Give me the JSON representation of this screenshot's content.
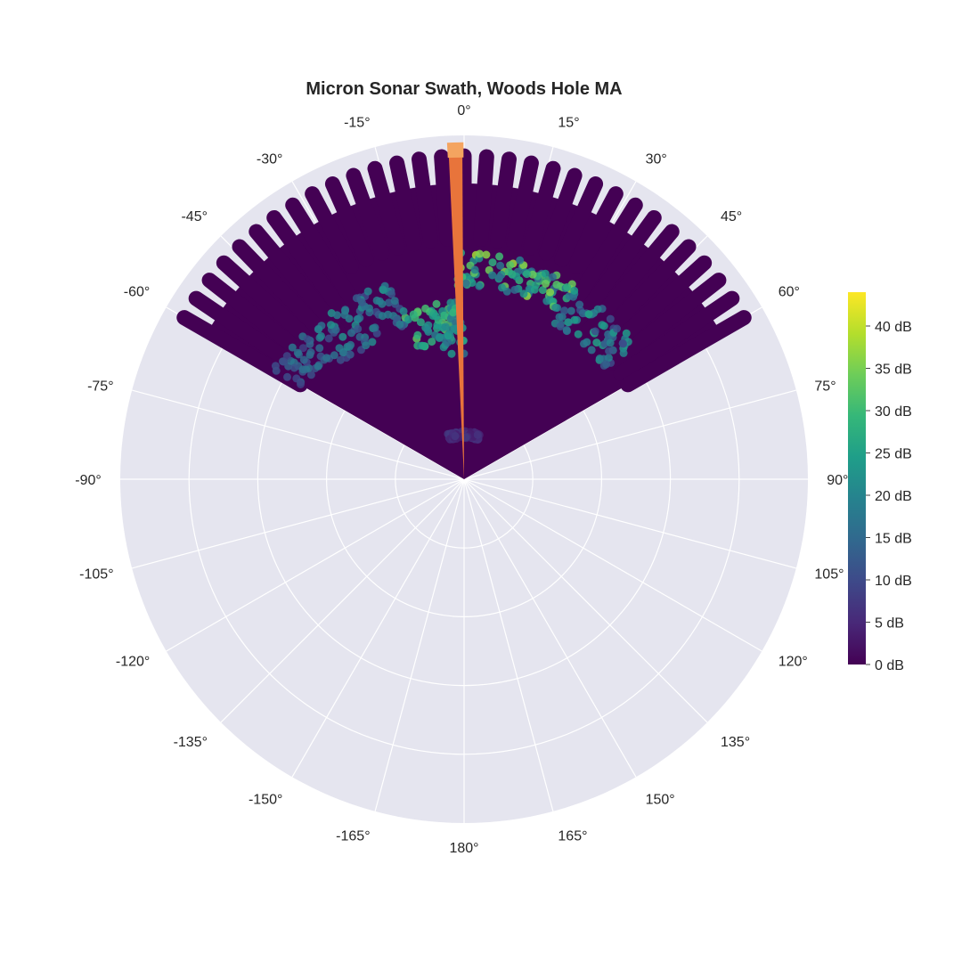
{
  "chart_data": {
    "type": "polar-scatter",
    "title": "Micron Sonar Swath, Woods Hole MA",
    "angular_axis": {
      "direction": "clockwise",
      "zero": "top",
      "tick_labels": [
        "0°",
        "15°",
        "30°",
        "45°",
        "60°",
        "75°",
        "90°",
        "105°",
        "120°",
        "135°",
        "150°",
        "165°",
        "180°",
        "-165°",
        "-150°",
        "-135°",
        "-120°",
        "-105°",
        "-90°",
        "-75°",
        "-60°",
        "-45°",
        "-30°",
        "-15°"
      ],
      "tick_values": [
        0,
        15,
        30,
        45,
        60,
        75,
        90,
        105,
        120,
        135,
        150,
        165,
        180,
        -165,
        -150,
        -135,
        -120,
        -105,
        -90,
        -75,
        -60,
        -45,
        -30,
        -15
      ]
    },
    "radial_axis": {
      "range": [
        0,
        50
      ],
      "gridlines": [
        10,
        20,
        30,
        40
      ],
      "tick_labels_shown": false
    },
    "grid": true,
    "swath": {
      "sector_deg": [
        -60,
        60
      ],
      "beam_count": 31,
      "max_range": 47
    },
    "returns": [
      {
        "theta_range": [
          -60,
          -47
        ],
        "r": [
          26,
          32
        ],
        "intensity_db": [
          8,
          18
        ]
      },
      {
        "theta_range": [
          -47,
          -20
        ],
        "r": [
          24,
          31
        ],
        "intensity_db": [
          10,
          22
        ]
      },
      {
        "theta_range": [
          -20,
          -2
        ],
        "r": [
          20,
          26
        ],
        "intensity_db": [
          18,
          34
        ]
      },
      {
        "theta_range": [
          -10,
          0
        ],
        "r": [
          18,
          25
        ],
        "intensity_db": [
          15,
          30
        ]
      },
      {
        "theta_range": [
          -2,
          30
        ],
        "r": [
          28,
          33
        ],
        "intensity_db": [
          15,
          38
        ]
      },
      {
        "theta_range": [
          30,
          52
        ],
        "r": [
          26,
          32
        ],
        "intensity_db": [
          10,
          26
        ]
      },
      {
        "theta_range": [
          -20,
          20
        ],
        "r": [
          6,
          7
        ],
        "intensity_db": [
          3,
          8
        ]
      }
    ],
    "current_beam": {
      "theta_deg": -1.5,
      "r_max": 48,
      "color": "#e8743b"
    },
    "colorbar": {
      "colorscale": "Viridis",
      "cmin": 0,
      "cmax": 44,
      "tickvals": [
        0,
        5,
        10,
        15,
        20,
        25,
        30,
        35,
        40
      ],
      "ticktext": [
        "0 dB",
        "5 dB",
        "10 dB",
        "15 dB",
        "20 dB",
        "25 dB",
        "30 dB",
        "35 dB",
        "40 dB"
      ]
    },
    "colors": {
      "polar_bg": "#e5e5ef",
      "grid": "#ffffff",
      "beam": "#e8743b",
      "beam_highlight": "#f4a460",
      "low": "#440154"
    }
  }
}
